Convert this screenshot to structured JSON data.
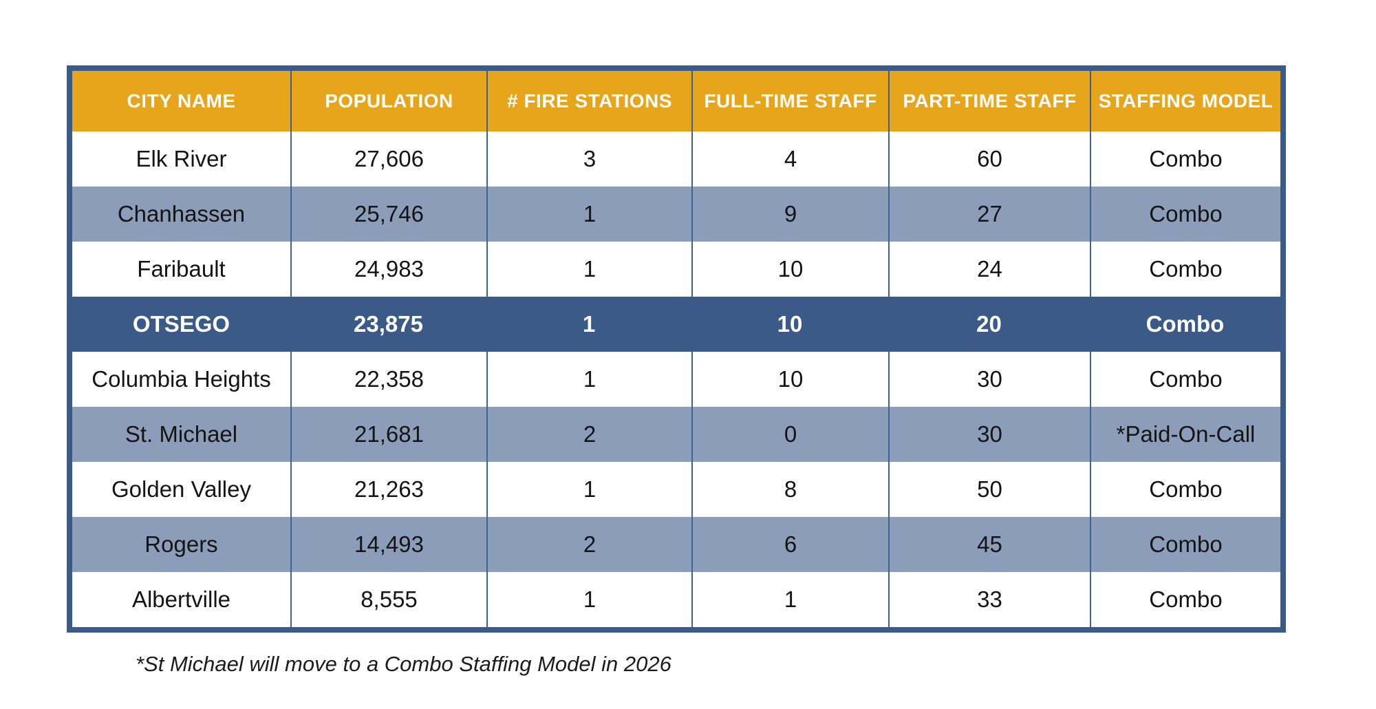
{
  "chart_data": {
    "type": "table",
    "title": "",
    "columns": [
      "CITY NAME",
      "POPULATION",
      "# FIRE STATIONS",
      "FULL-TIME STAFF",
      "PART-TIME STAFF",
      "STAFFING MODEL"
    ],
    "rows": [
      [
        "Elk River",
        "27,606",
        "3",
        "4",
        "60",
        "Combo"
      ],
      [
        "Chanhassen",
        "25,746",
        "1",
        "9",
        "27",
        "Combo"
      ],
      [
        "Faribault",
        "24,983",
        "1",
        "10",
        "24",
        "Combo"
      ],
      [
        "OTSEGO",
        "23,875",
        "1",
        "10",
        "20",
        "Combo"
      ],
      [
        "Columbia Heights",
        "22,358",
        "1",
        "10",
        "30",
        "Combo"
      ],
      [
        "St. Michael",
        "21,681",
        "2",
        "0",
        "30",
        "*Paid-On-Call"
      ],
      [
        "Golden Valley",
        "21,263",
        "1",
        "8",
        "50",
        "Combo"
      ],
      [
        "Rogers",
        "14,493",
        "2",
        "6",
        "45",
        "Combo"
      ],
      [
        "Albertville",
        "8,555",
        "1",
        "1",
        "33",
        "Combo"
      ]
    ],
    "highlighted_row_index": 3,
    "footnote": "*St Michael will move to a Combo Staffing Model in 2026",
    "legend_position": "none",
    "grid": "column-dividers-and-outer-border"
  },
  "colors": {
    "header_bg": "#E7A51C",
    "header_text": "#FFFFFF",
    "alt_row_bg": "#8C9DBA",
    "white_row_bg": "#FFFFFF",
    "highlight_row_bg": "#3B5A88",
    "highlight_row_text": "#FFFFFF",
    "table_border": "#3A5A88",
    "column_divider": "#3E6291",
    "body_text": "#141414",
    "page_bg": "#FFFFFF"
  }
}
